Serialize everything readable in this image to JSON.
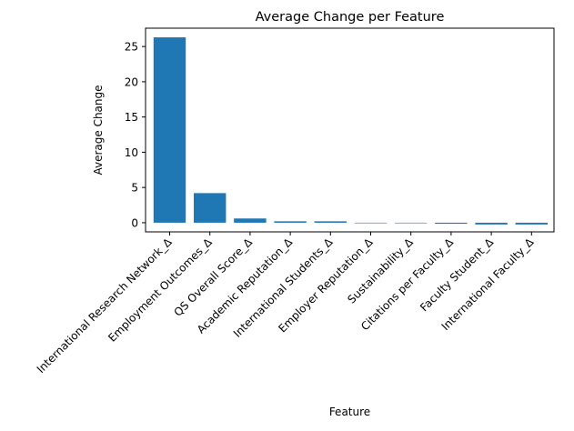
{
  "chart_data": {
    "type": "bar",
    "title": "Average Change per Feature",
    "xlabel": "Feature",
    "ylabel": "Average Change",
    "categories": [
      "International Research Network_Δ",
      "Employment Outcomes_Δ",
      "QS Overall Score_Δ",
      "Academic Reputation_Δ",
      "International Students_Δ",
      "Employer Reputation_Δ",
      "Sustainability_Δ",
      "Citations per Faculty_Δ",
      "Faculty Student_Δ",
      "International Faculty_Δ"
    ],
    "values": [
      26.3,
      4.2,
      0.6,
      0.2,
      0.2,
      0.0,
      0.0,
      -0.15,
      -0.25,
      -0.25
    ],
    "ylim": [
      -1.3,
      27.6
    ],
    "yticks": [
      0,
      5,
      10,
      15,
      20,
      25
    ],
    "grid": false,
    "bar_color": "#1f77b4"
  }
}
